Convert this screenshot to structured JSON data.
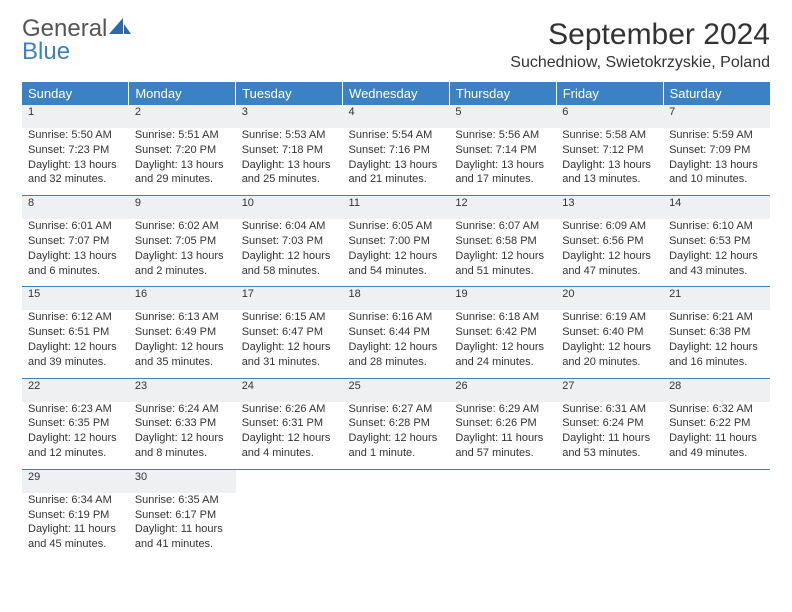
{
  "logo": {
    "text1": "General",
    "text2": "Blue"
  },
  "title": "September 2024",
  "location": "Suchedniow, Swietokrzyskie, Poland",
  "colors": {
    "header_bg": "#3b82c4",
    "daynum_bg": "#eef0f2",
    "rule": "#3b82c4",
    "text": "#333333"
  },
  "weekdays": [
    "Sunday",
    "Monday",
    "Tuesday",
    "Wednesday",
    "Thursday",
    "Friday",
    "Saturday"
  ],
  "weeks": [
    [
      {
        "n": "1",
        "sr": "Sunrise: 5:50 AM",
        "ss": "Sunset: 7:23 PM",
        "d1": "Daylight: 13 hours",
        "d2": "and 32 minutes."
      },
      {
        "n": "2",
        "sr": "Sunrise: 5:51 AM",
        "ss": "Sunset: 7:20 PM",
        "d1": "Daylight: 13 hours",
        "d2": "and 29 minutes."
      },
      {
        "n": "3",
        "sr": "Sunrise: 5:53 AM",
        "ss": "Sunset: 7:18 PM",
        "d1": "Daylight: 13 hours",
        "d2": "and 25 minutes."
      },
      {
        "n": "4",
        "sr": "Sunrise: 5:54 AM",
        "ss": "Sunset: 7:16 PM",
        "d1": "Daylight: 13 hours",
        "d2": "and 21 minutes."
      },
      {
        "n": "5",
        "sr": "Sunrise: 5:56 AM",
        "ss": "Sunset: 7:14 PM",
        "d1": "Daylight: 13 hours",
        "d2": "and 17 minutes."
      },
      {
        "n": "6",
        "sr": "Sunrise: 5:58 AM",
        "ss": "Sunset: 7:12 PM",
        "d1": "Daylight: 13 hours",
        "d2": "and 13 minutes."
      },
      {
        "n": "7",
        "sr": "Sunrise: 5:59 AM",
        "ss": "Sunset: 7:09 PM",
        "d1": "Daylight: 13 hours",
        "d2": "and 10 minutes."
      }
    ],
    [
      {
        "n": "8",
        "sr": "Sunrise: 6:01 AM",
        "ss": "Sunset: 7:07 PM",
        "d1": "Daylight: 13 hours",
        "d2": "and 6 minutes."
      },
      {
        "n": "9",
        "sr": "Sunrise: 6:02 AM",
        "ss": "Sunset: 7:05 PM",
        "d1": "Daylight: 13 hours",
        "d2": "and 2 minutes."
      },
      {
        "n": "10",
        "sr": "Sunrise: 6:04 AM",
        "ss": "Sunset: 7:03 PM",
        "d1": "Daylight: 12 hours",
        "d2": "and 58 minutes."
      },
      {
        "n": "11",
        "sr": "Sunrise: 6:05 AM",
        "ss": "Sunset: 7:00 PM",
        "d1": "Daylight: 12 hours",
        "d2": "and 54 minutes."
      },
      {
        "n": "12",
        "sr": "Sunrise: 6:07 AM",
        "ss": "Sunset: 6:58 PM",
        "d1": "Daylight: 12 hours",
        "d2": "and 51 minutes."
      },
      {
        "n": "13",
        "sr": "Sunrise: 6:09 AM",
        "ss": "Sunset: 6:56 PM",
        "d1": "Daylight: 12 hours",
        "d2": "and 47 minutes."
      },
      {
        "n": "14",
        "sr": "Sunrise: 6:10 AM",
        "ss": "Sunset: 6:53 PM",
        "d1": "Daylight: 12 hours",
        "d2": "and 43 minutes."
      }
    ],
    [
      {
        "n": "15",
        "sr": "Sunrise: 6:12 AM",
        "ss": "Sunset: 6:51 PM",
        "d1": "Daylight: 12 hours",
        "d2": "and 39 minutes."
      },
      {
        "n": "16",
        "sr": "Sunrise: 6:13 AM",
        "ss": "Sunset: 6:49 PM",
        "d1": "Daylight: 12 hours",
        "d2": "and 35 minutes."
      },
      {
        "n": "17",
        "sr": "Sunrise: 6:15 AM",
        "ss": "Sunset: 6:47 PM",
        "d1": "Daylight: 12 hours",
        "d2": "and 31 minutes."
      },
      {
        "n": "18",
        "sr": "Sunrise: 6:16 AM",
        "ss": "Sunset: 6:44 PM",
        "d1": "Daylight: 12 hours",
        "d2": "and 28 minutes."
      },
      {
        "n": "19",
        "sr": "Sunrise: 6:18 AM",
        "ss": "Sunset: 6:42 PM",
        "d1": "Daylight: 12 hours",
        "d2": "and 24 minutes."
      },
      {
        "n": "20",
        "sr": "Sunrise: 6:19 AM",
        "ss": "Sunset: 6:40 PM",
        "d1": "Daylight: 12 hours",
        "d2": "and 20 minutes."
      },
      {
        "n": "21",
        "sr": "Sunrise: 6:21 AM",
        "ss": "Sunset: 6:38 PM",
        "d1": "Daylight: 12 hours",
        "d2": "and 16 minutes."
      }
    ],
    [
      {
        "n": "22",
        "sr": "Sunrise: 6:23 AM",
        "ss": "Sunset: 6:35 PM",
        "d1": "Daylight: 12 hours",
        "d2": "and 12 minutes."
      },
      {
        "n": "23",
        "sr": "Sunrise: 6:24 AM",
        "ss": "Sunset: 6:33 PM",
        "d1": "Daylight: 12 hours",
        "d2": "and 8 minutes."
      },
      {
        "n": "24",
        "sr": "Sunrise: 6:26 AM",
        "ss": "Sunset: 6:31 PM",
        "d1": "Daylight: 12 hours",
        "d2": "and 4 minutes."
      },
      {
        "n": "25",
        "sr": "Sunrise: 6:27 AM",
        "ss": "Sunset: 6:28 PM",
        "d1": "Daylight: 12 hours",
        "d2": "and 1 minute."
      },
      {
        "n": "26",
        "sr": "Sunrise: 6:29 AM",
        "ss": "Sunset: 6:26 PM",
        "d1": "Daylight: 11 hours",
        "d2": "and 57 minutes."
      },
      {
        "n": "27",
        "sr": "Sunrise: 6:31 AM",
        "ss": "Sunset: 6:24 PM",
        "d1": "Daylight: 11 hours",
        "d2": "and 53 minutes."
      },
      {
        "n": "28",
        "sr": "Sunrise: 6:32 AM",
        "ss": "Sunset: 6:22 PM",
        "d1": "Daylight: 11 hours",
        "d2": "and 49 minutes."
      }
    ],
    [
      {
        "n": "29",
        "sr": "Sunrise: 6:34 AM",
        "ss": "Sunset: 6:19 PM",
        "d1": "Daylight: 11 hours",
        "d2": "and 45 minutes."
      },
      {
        "n": "30",
        "sr": "Sunrise: 6:35 AM",
        "ss": "Sunset: 6:17 PM",
        "d1": "Daylight: 11 hours",
        "d2": "and 41 minutes."
      },
      null,
      null,
      null,
      null,
      null
    ]
  ]
}
